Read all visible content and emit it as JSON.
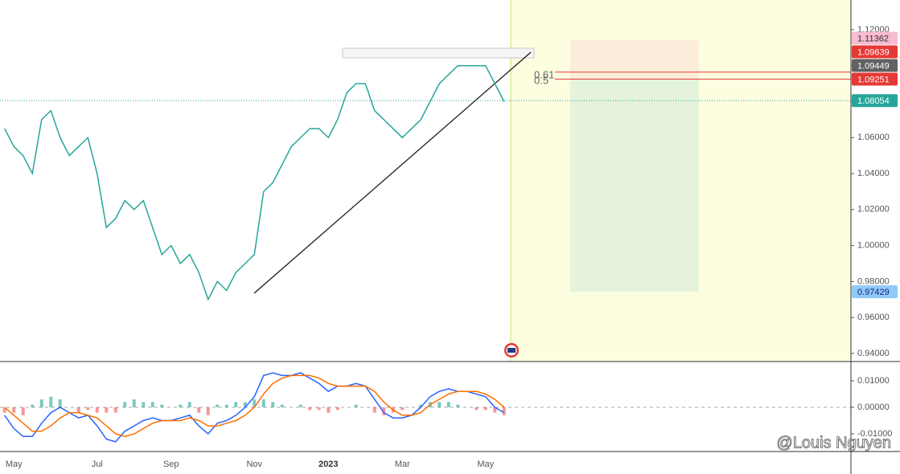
{
  "chart_data": [
    {
      "type": "line",
      "ylim": [
        0.9355,
        1.1365
      ],
      "yticks": [
        {
          "value": 0.94,
          "label": "0.94000"
        },
        {
          "value": 0.96,
          "label": "0.96000"
        },
        {
          "value": 0.98,
          "label": "0.98000"
        },
        {
          "value": 1.0,
          "label": "1.00000"
        },
        {
          "value": 1.02,
          "label": "1.02000"
        },
        {
          "value": 1.04,
          "label": "1.04000"
        },
        {
          "value": 1.06,
          "label": "1.06000"
        },
        {
          "value": 1.08,
          "label": "1.08000"
        },
        {
          "value": 1.1,
          "label": "1.10000"
        },
        {
          "value": 1.12,
          "label": "1.12000"
        }
      ],
      "series": [
        {
          "color": "#26a69a",
          "values": [
            1.065,
            1.055,
            1.05,
            1.04,
            1.07,
            1.075,
            1.06,
            1.05,
            1.055,
            1.06,
            1.04,
            1.01,
            1.015,
            1.025,
            1.02,
            1.025,
            1.01,
            0.995,
            1.0,
            0.99,
            0.995,
            0.985,
            0.97,
            0.98,
            0.975,
            0.985,
            0.99,
            0.995,
            1.03,
            1.035,
            1.045,
            1.055,
            1.06,
            1.065,
            1.065,
            1.06,
            1.07,
            1.085,
            1.09,
            1.09,
            1.075,
            1.07,
            1.065,
            1.06,
            1.065,
            1.07,
            1.08,
            1.09,
            1.095,
            1.1,
            1.1,
            1.1,
            1.1,
            1.09,
            1.08
          ]
        }
      ],
      "price_labels": [
        {
          "value": 1.11362,
          "label": "1.11362",
          "color": "#f8bbd0",
          "text_color": "#333333"
        },
        {
          "value": 1.09639,
          "label": "1.09639",
          "color": "#e53935",
          "text_color": "#ffffff",
          "line": "solid"
        },
        {
          "value": 1.09449,
          "label": "1.09449",
          "color": "#616161",
          "text_color": "#ffffff"
        },
        {
          "value": 1.09251,
          "label": "1.09251",
          "color": "#e53935",
          "text_color": "#ffffff",
          "line": "solid"
        },
        {
          "value": 1.08054,
          "label": "1.08054",
          "color": "#26a69a",
          "text_color": "#ffffff",
          "line": "dotted"
        },
        {
          "value": 0.97429,
          "label": "0.97429",
          "color": "#90caf9",
          "text_color": "#1a237e"
        }
      ],
      "fib_levels": [
        "0.61",
        "0.5"
      ]
    },
    {
      "type": "macd",
      "ylim": [
        -0.01667,
        0.01667
      ],
      "yticks": [
        {
          "value": -0.01,
          "label": "-0.01000"
        },
        {
          "value": 0,
          "label": "0.00000"
        },
        {
          "value": 0.01,
          "label": "0.01000"
        }
      ],
      "categories": [
        null,
        "May",
        null,
        null,
        null,
        null,
        null,
        null,
        null,
        null,
        "Jul",
        null,
        null,
        null,
        null,
        null,
        null,
        null,
        "Sep",
        null,
        null,
        null,
        null,
        null,
        null,
        null,
        null,
        "Nov",
        null,
        null,
        null,
        null,
        null,
        null,
        null,
        "2023",
        null,
        null,
        null,
        null,
        null,
        null,
        null,
        "Mar",
        null,
        null,
        null,
        null,
        null,
        null,
        null,
        null,
        "May",
        null,
        null
      ],
      "series": [
        {
          "color": "#2962ff",
          "values": [
            -0.003,
            -0.008,
            -0.011,
            -0.011,
            -0.006,
            -0.002,
            0.0,
            -0.002,
            -0.004,
            -0.003,
            -0.007,
            -0.012,
            -0.013,
            -0.009,
            -0.007,
            -0.005,
            -0.004,
            -0.005,
            -0.005,
            -0.004,
            -0.003,
            -0.007,
            -0.01,
            -0.006,
            -0.005,
            -0.003,
            0.0,
            0.004,
            0.012,
            0.013,
            0.012,
            0.012,
            0.013,
            0.011,
            0.009,
            0.006,
            0.008,
            0.008,
            0.009,
            0.008,
            0.003,
            -0.002,
            -0.004,
            -0.004,
            -0.003,
            0.0,
            0.004,
            0.006,
            0.007,
            0.006,
            0.006,
            0.005,
            0.004,
            0.0,
            -0.002
          ]
        },
        {
          "color": "#ff6d00",
          "values": [
            0.0,
            -0.003,
            -0.006,
            -0.009,
            -0.009,
            -0.007,
            -0.004,
            -0.002,
            -0.002,
            -0.003,
            -0.004,
            -0.007,
            -0.01,
            -0.011,
            -0.01,
            -0.008,
            -0.006,
            -0.005,
            -0.005,
            -0.005,
            -0.004,
            -0.005,
            -0.007,
            -0.007,
            -0.006,
            -0.005,
            -0.003,
            0.0,
            0.005,
            0.009,
            0.011,
            0.012,
            0.012,
            0.012,
            0.011,
            0.009,
            0.008,
            0.008,
            0.008,
            0.008,
            0.006,
            0.002,
            -0.001,
            -0.003,
            -0.003,
            -0.002,
            0.001,
            0.003,
            0.005,
            0.006,
            0.006,
            0.006,
            0.005,
            0.003,
            0.0
          ]
        }
      ],
      "histogram": {
        "up_color": "#26a69a",
        "down_color": "#ef5350",
        "values": [
          -0.002,
          -0.002,
          -0.003,
          0.001,
          0.003,
          0.004,
          0.003,
          0.0,
          -0.002,
          -0.001,
          -0.002,
          -0.002,
          -0.002,
          0.002,
          0.003,
          0.002,
          0.002,
          0.001,
          0.0,
          0.001,
          0.002,
          -0.002,
          -0.003,
          0.001,
          0.001,
          0.002,
          0.002,
          0.003,
          0.003,
          0.002,
          0.001,
          0.0,
          0.001,
          -0.001,
          -0.001,
          -0.002,
          -0.001,
          0.0,
          0.001,
          0.0,
          -0.002,
          -0.003,
          -0.002,
          -0.001,
          0.0,
          0.001,
          0.002,
          0.002,
          0.002,
          0.001,
          0.0,
          -0.001,
          -0.001,
          -0.002,
          -0.003
        ]
      }
    }
  ],
  "watermark": "@Louis Nguyen"
}
